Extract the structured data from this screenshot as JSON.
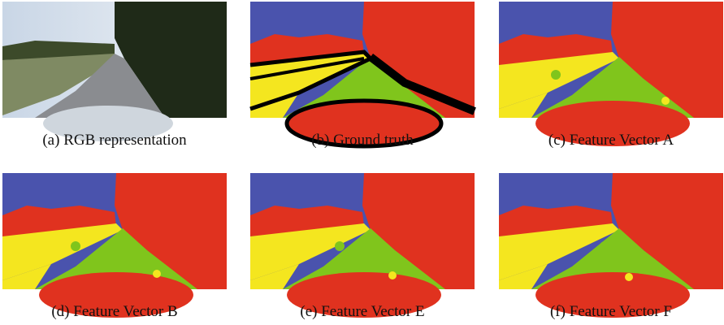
{
  "figure": {
    "panels": [
      {
        "caption": "(a) RGB representation"
      },
      {
        "caption": "(b) Ground truth"
      },
      {
        "caption": "(c) Feature Vector A"
      },
      {
        "caption": "(d) Feature Vector B"
      },
      {
        "caption": "(e) Feature Vector E"
      },
      {
        "caption": "(f) Feature Vector F"
      }
    ]
  }
}
